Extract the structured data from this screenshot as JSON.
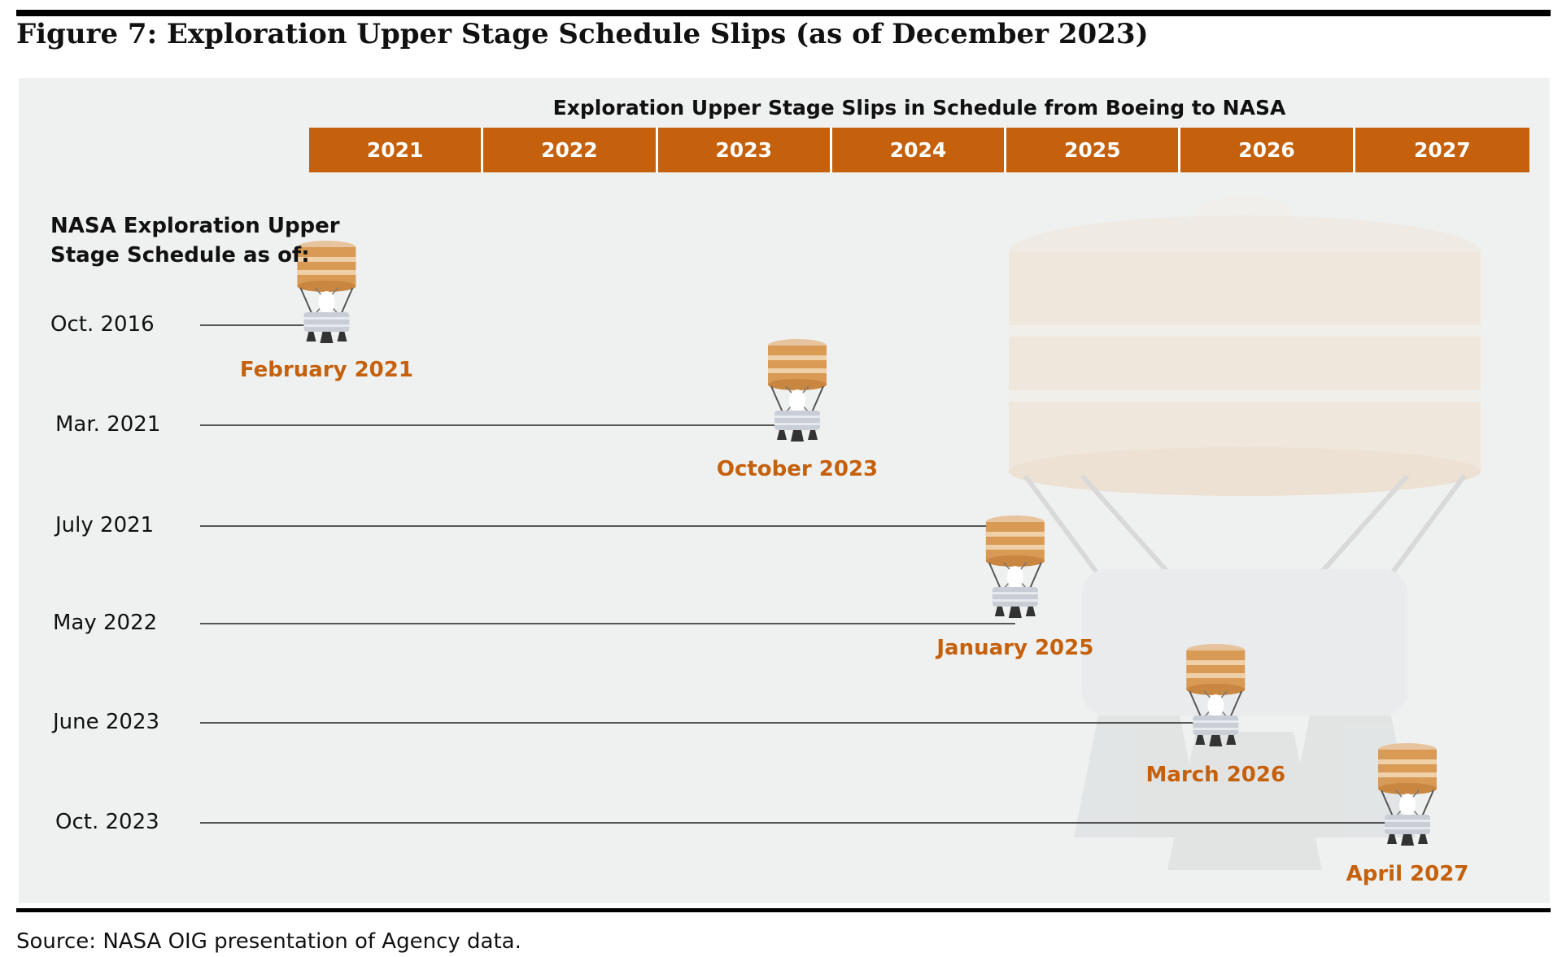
{
  "figure": {
    "title": "Figure 7: Exploration Upper Stage Schedule Slips (as of December 2023)",
    "source": "Source: NASA OIG presentation of Agency data."
  },
  "chart": {
    "title": "Exploration Upper Stage Slips in Schedule from Boeing to NASA",
    "schedule_label_line1": "NASA Exploration Upper",
    "schedule_label_line2": "Stage Schedule as of:",
    "years": [
      "2021",
      "2022",
      "2023",
      "2024",
      "2025",
      "2026",
      "2027"
    ],
    "colors": {
      "header_fill": "#c5600c",
      "label_text": "#c5600c",
      "panel": "#eff1f0",
      "rocket_tank": "#d89a55"
    },
    "icon": "upper-stage-rocket-icon"
  },
  "chart_data": {
    "type": "timeline",
    "title": "Exploration Upper Stage Slips in Schedule from Boeing to NASA",
    "x_axis": {
      "start": 2021.0,
      "end": 2028.0
    },
    "rows": [
      {
        "as_of": "Oct. 2016",
        "planned": "February 2021",
        "planned_value": 2021.1
      },
      {
        "as_of": "Mar. 2021",
        "planned": "October 2023",
        "planned_value": 2023.8
      },
      {
        "as_of": "July 2021",
        "planned": "January 2025",
        "planned_value": 2025.05
      },
      {
        "as_of": "May 2022",
        "planned": "January 2025",
        "planned_value": 2025.05
      },
      {
        "as_of": "June 2023",
        "planned": "March 2026",
        "planned_value": 2026.2
      },
      {
        "as_of": "Oct. 2023",
        "planned": "April 2027",
        "planned_value": 2027.3
      }
    ],
    "milestones": [
      {
        "label": "February 2021",
        "value": 2021.1
      },
      {
        "label": "October 2023",
        "value": 2023.8
      },
      {
        "label": "January 2025",
        "value": 2025.05
      },
      {
        "label": "March 2026",
        "value": 2026.2
      },
      {
        "label": "April 2027",
        "value": 2027.3
      }
    ]
  }
}
